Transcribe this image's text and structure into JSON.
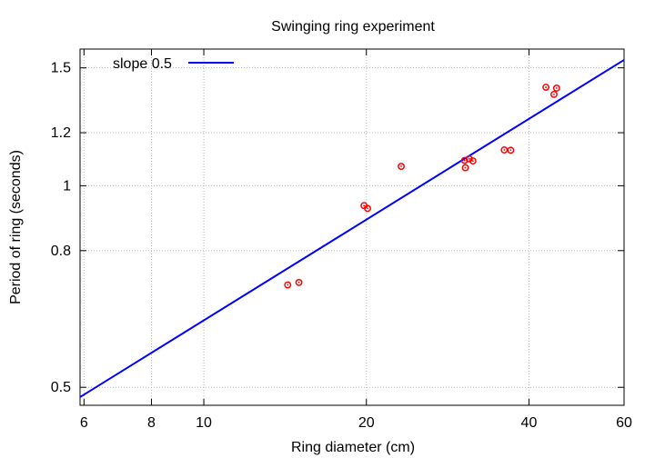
{
  "chart_data": {
    "type": "scatter",
    "title": "Swinging ring experiment",
    "xlabel": "Ring diameter (cm)",
    "ylabel": "Period of ring (seconds)",
    "xscale": "log",
    "yscale": "log",
    "xlim": [
      5.9,
      60
    ],
    "ylim": [
      0.47,
      1.6
    ],
    "grid": true,
    "legend_position": "top-left",
    "x_ticks": [
      6,
      8,
      10,
      20,
      40,
      60
    ],
    "x_tick_labels": [
      "6",
      "8",
      "10",
      "20",
      "40",
      "60"
    ],
    "y_ticks": [
      0.5,
      0.8,
      1.0,
      1.2,
      1.5
    ],
    "y_tick_labels": [
      "0.5",
      "0.8",
      "1",
      "1.2",
      "1.5"
    ],
    "series": [
      {
        "name": "slope 0.5",
        "kind": "line",
        "color": "#0000ff",
        "x": [
          5.9,
          60
        ],
        "y": [
          0.4835,
          1.5415
        ]
      },
      {
        "kind": "scatter",
        "color": "#ff0000",
        "x": [
          14.3,
          15.0,
          19.8,
          20.1,
          23.2,
          30.4,
          30.5,
          31.0,
          31.5,
          36.0,
          37.0,
          43.0,
          44.5,
          45.0
        ],
        "y": [
          0.711,
          0.717,
          0.934,
          0.925,
          1.069,
          1.091,
          1.064,
          1.097,
          1.089,
          1.131,
          1.13,
          1.403,
          1.369,
          1.399
        ]
      }
    ]
  }
}
